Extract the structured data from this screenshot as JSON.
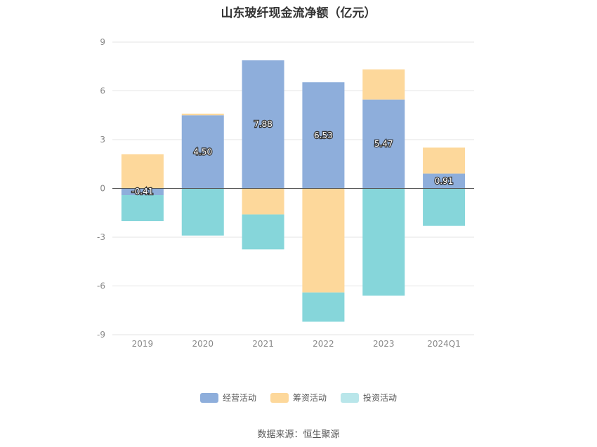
{
  "chart_data": {
    "type": "bar",
    "stacked": true,
    "title": "山东玻纤现金流净额（亿元）",
    "categories": [
      "2019",
      "2020",
      "2021",
      "2022",
      "2023",
      "2024Q1"
    ],
    "series": [
      {
        "name": "经营活动",
        "color": "#8eaedb",
        "values": [
          -0.41,
          4.5,
          7.88,
          6.53,
          5.47,
          0.91
        ],
        "labels": [
          "-0.41",
          "4.50",
          "7.88",
          "6.53",
          "5.47",
          "0.91"
        ]
      },
      {
        "name": "筹资活动",
        "color": "#fdd89b",
        "values": [
          2.1,
          0.1,
          -1.6,
          -6.4,
          1.85,
          1.6
        ]
      },
      {
        "name": "投资活动",
        "color": "#86d6da",
        "values": [
          -1.6,
          -2.9,
          -2.15,
          -1.8,
          -6.6,
          -2.3
        ]
      }
    ],
    "ylim": [
      -9,
      9
    ],
    "yticks": [
      9,
      6,
      3,
      0,
      -3,
      -6,
      -9
    ],
    "grid": true,
    "legend_position": "bottom"
  },
  "legend": {
    "items": [
      {
        "label": "经营活动",
        "color": "#8eaedb"
      },
      {
        "label": "筹资活动",
        "color": "#fdd89b"
      },
      {
        "label": "投资活动",
        "color": "#b9e6ea"
      }
    ]
  },
  "source": "数据来源：恒生聚源"
}
